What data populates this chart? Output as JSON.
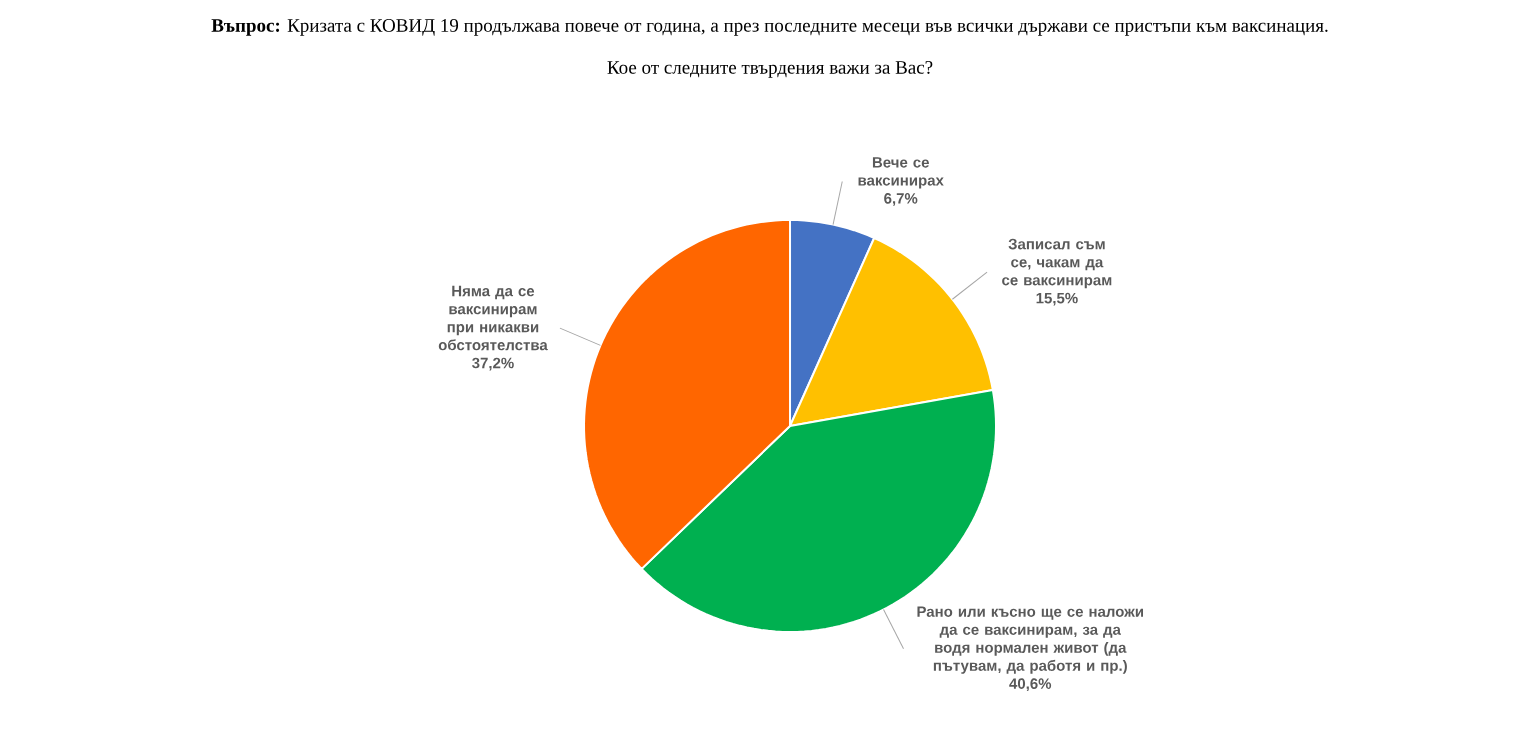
{
  "chart_data": {
    "type": "pie",
    "title": "**Въпрос:** Кризата с КОВИД 19 продължава повече от година, а през последните месеци във всички държави се пристъпи към ваксинация.",
    "subtitle": "Кое от следните твърдения важи за Вас?",
    "categories": [
      "Вече се ваксинирах",
      "Записал съм се, чакам да се ваксинирам",
      "Рано или късно ще се наложи да се ваксинирам, за да водя нормален живот (да пътувам, да работя и пр.)",
      "Няма да се ваксинирам при никакви обстоятелства"
    ],
    "values": [
      6.7,
      15.5,
      40.6,
      37.2
    ],
    "value_labels": [
      "6,7%",
      "15,5%",
      "40,6%",
      "37,2%"
    ],
    "colors": [
      "#4472c4",
      "#ffc000",
      "#00b050",
      "#ff6600"
    ]
  }
}
